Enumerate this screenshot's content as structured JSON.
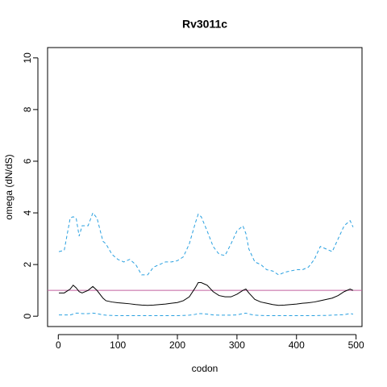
{
  "chart_data": {
    "type": "line",
    "title": "Rv3011c",
    "x_label": "codon",
    "y_label": "omega (dN/dS)",
    "x": [
      1,
      10,
      20,
      25,
      30,
      35,
      40,
      50,
      58,
      65,
      75,
      80,
      90,
      100,
      110,
      120,
      130,
      140,
      150,
      160,
      170,
      180,
      190,
      200,
      210,
      220,
      230,
      235,
      240,
      250,
      260,
      270,
      280,
      290,
      300,
      310,
      315,
      320,
      330,
      340,
      350,
      360,
      370,
      380,
      390,
      400,
      410,
      420,
      430,
      440,
      450,
      460,
      470,
      480,
      490,
      495
    ],
    "series": [
      {
        "color": "#29a0e0",
        "linestyle": "dashed",
        "values": [
          2.5,
          2.55,
          3.8,
          3.85,
          3.8,
          3.1,
          3.5,
          3.5,
          4.0,
          3.8,
          2.9,
          2.8,
          2.4,
          2.2,
          2.1,
          2.2,
          2.0,
          1.6,
          1.6,
          1.9,
          2.0,
          2.1,
          2.1,
          2.15,
          2.3,
          2.8,
          3.6,
          3.95,
          3.85,
          3.3,
          2.7,
          2.4,
          2.35,
          2.8,
          3.3,
          3.5,
          3.2,
          2.6,
          2.1,
          2.0,
          1.8,
          1.75,
          1.6,
          1.7,
          1.75,
          1.8,
          1.8,
          1.9,
          2.2,
          2.7,
          2.6,
          2.5,
          3.0,
          3.5,
          3.7,
          3.45
        ]
      },
      {
        "color": "#000000",
        "linestyle": "solid",
        "values": [
          0.9,
          0.9,
          1.05,
          1.2,
          1.1,
          0.95,
          0.9,
          1.0,
          1.15,
          1.0,
          0.7,
          0.6,
          0.55,
          0.52,
          0.5,
          0.48,
          0.45,
          0.43,
          0.42,
          0.43,
          0.45,
          0.47,
          0.5,
          0.53,
          0.6,
          0.75,
          1.1,
          1.3,
          1.3,
          1.2,
          0.95,
          0.8,
          0.75,
          0.75,
          0.85,
          1.0,
          1.05,
          0.9,
          0.65,
          0.55,
          0.5,
          0.45,
          0.42,
          0.43,
          0.45,
          0.47,
          0.5,
          0.52,
          0.55,
          0.6,
          0.65,
          0.7,
          0.8,
          0.95,
          1.05,
          1.0
        ]
      },
      {
        "color": "#29a0e0",
        "linestyle": "dashed",
        "values": [
          0.05,
          0.05,
          0.05,
          0.08,
          0.12,
          0.12,
          0.1,
          0.1,
          0.12,
          0.1,
          0.05,
          0.04,
          0.03,
          0.02,
          0.02,
          0.02,
          0.02,
          0.02,
          0.02,
          0.02,
          0.02,
          0.02,
          0.02,
          0.02,
          0.03,
          0.04,
          0.07,
          0.1,
          0.1,
          0.08,
          0.05,
          0.04,
          0.04,
          0.04,
          0.05,
          0.1,
          0.12,
          0.08,
          0.04,
          0.03,
          0.02,
          0.02,
          0.02,
          0.02,
          0.02,
          0.02,
          0.02,
          0.02,
          0.02,
          0.03,
          0.03,
          0.04,
          0.05,
          0.06,
          0.1,
          0.08
        ]
      }
    ],
    "hline": 1,
    "hline_color": "#c0609f",
    "xlim": [
      -18,
      510
    ],
    "ylim": [
      -0.4,
      10.4
    ],
    "xticks": [
      0,
      100,
      200,
      300,
      400,
      500
    ],
    "yticks": [
      0,
      2,
      4,
      6,
      8,
      10
    ]
  }
}
